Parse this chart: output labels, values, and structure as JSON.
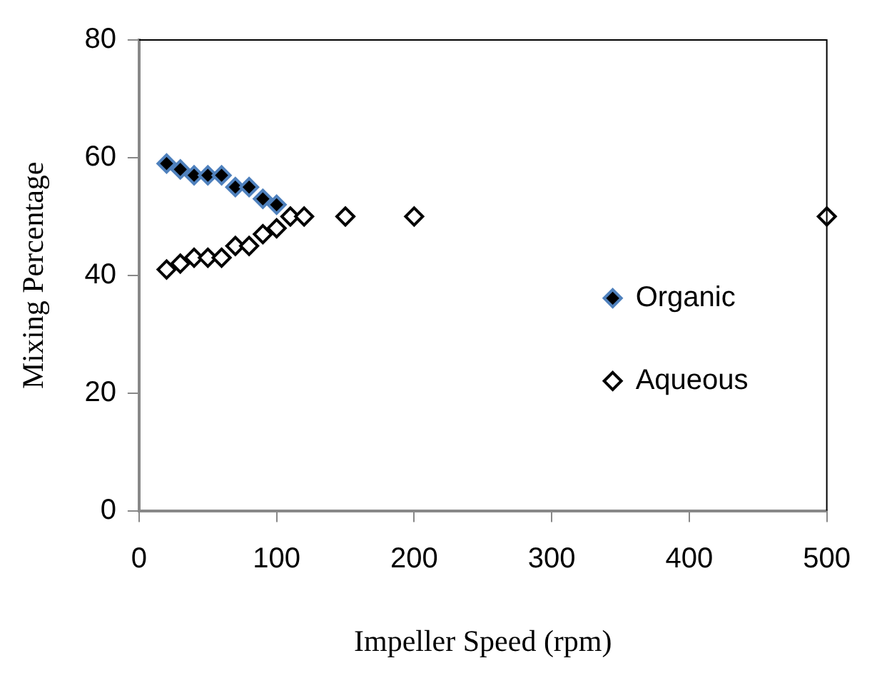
{
  "chart_data": {
    "type": "scatter",
    "xlabel": "Impeller Speed (rpm)",
    "ylabel": "Mixing Percentage",
    "xlim": [
      0,
      500
    ],
    "xticks": [
      0,
      100,
      200,
      300,
      400,
      500
    ],
    "ylim": [
      0,
      80
    ],
    "yticks": [
      0,
      20,
      40,
      60,
      80
    ],
    "grid": false,
    "legend": "right",
    "marker": "diamond",
    "series": [
      {
        "name": "Organic",
        "color": "#4f81bd",
        "x": [
          20,
          30,
          40,
          50,
          60,
          70,
          80,
          90,
          100
        ],
        "values": [
          59,
          58,
          57,
          57,
          57,
          55,
          55,
          53,
          52
        ]
      },
      {
        "name": "Aqueous",
        "color": "#000000",
        "x": [
          20,
          30,
          40,
          50,
          60,
          70,
          80,
          90,
          100,
          110,
          120,
          150,
          200,
          500
        ],
        "values": [
          41,
          42,
          43,
          43,
          43,
          45,
          45,
          47,
          48,
          50,
          50,
          50,
          50,
          50
        ]
      }
    ]
  }
}
